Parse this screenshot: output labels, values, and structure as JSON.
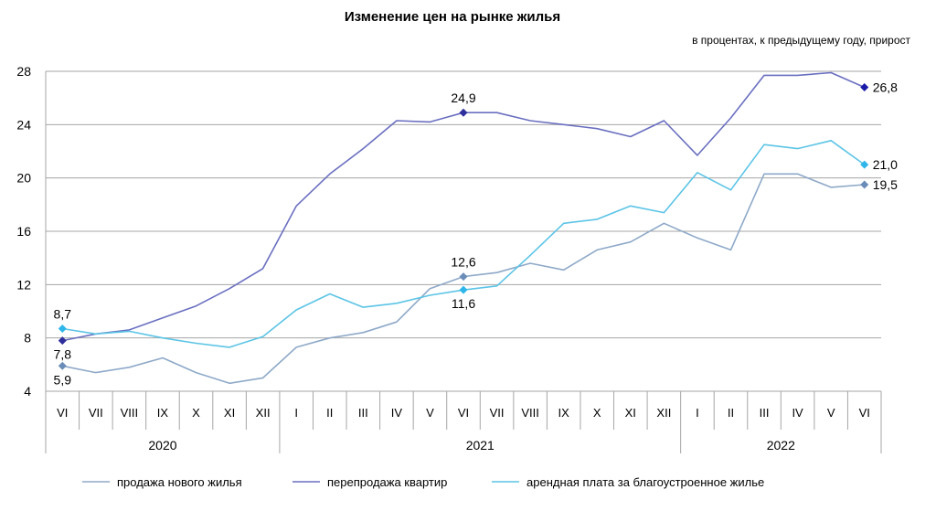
{
  "chart_data": {
    "type": "line",
    "title": "Изменение цен на рынке жилья",
    "subtitle": "в процентах, к предыдущему году, прирост",
    "ylim": [
      4,
      28
    ],
    "yticks": [
      "4",
      "8",
      "12",
      "16",
      "20",
      "24",
      "28"
    ],
    "grid": true,
    "legend_position": "bottom",
    "categories": [
      "VI",
      "VII",
      "VIII",
      "IX",
      "X",
      "XI",
      "XII",
      "I",
      "II",
      "III",
      "IV",
      "V",
      "VI",
      "VII",
      "VIII",
      "IX",
      "X",
      "XI",
      "XII",
      "I",
      "II",
      "III",
      "IV",
      "V",
      "VI"
    ],
    "years": [
      {
        "label": "2020",
        "start": 0,
        "end": 6
      },
      {
        "label": "2021",
        "start": 7,
        "end": 18
      },
      {
        "label": "2022",
        "start": 19,
        "end": 24
      }
    ],
    "series": [
      {
        "name": "продажа нового жилья",
        "color": "#8EA9C8",
        "values": [
          5.9,
          5.4,
          5.8,
          6.5,
          5.4,
          4.6,
          5.0,
          7.3,
          8.0,
          8.4,
          9.2,
          11.7,
          12.6,
          12.9,
          13.6,
          13.1,
          14.6,
          15.2,
          16.6,
          15.5,
          14.6,
          20.3,
          20.3,
          19.3,
          19.5
        ]
      },
      {
        "name": "перепродажа квартир",
        "color": "#6A6FC0",
        "values": [
          7.8,
          8.3,
          8.6,
          9.5,
          10.4,
          11.7,
          13.2,
          17.9,
          20.3,
          22.2,
          24.3,
          24.2,
          24.9,
          24.9,
          24.3,
          24.0,
          23.7,
          23.1,
          24.3,
          21.7,
          24.5,
          27.7,
          27.7,
          27.9,
          26.8
        ]
      },
      {
        "name": "арендная плата за благоустроенное  жилье",
        "color": "#5BC4E6",
        "values": [
          8.7,
          8.3,
          8.5,
          8.0,
          7.6,
          7.3,
          8.1,
          10.1,
          11.3,
          10.3,
          10.6,
          11.2,
          11.6,
          11.9,
          14.2,
          16.6,
          16.9,
          17.9,
          17.4,
          20.4,
          19.1,
          22.5,
          22.2,
          22.8,
          21.0
        ]
      }
    ],
    "data_labels": [
      {
        "series": 1,
        "index": 0,
        "text": "7,8",
        "marker_color": "#2E2E9C",
        "side": "below"
      },
      {
        "series": 2,
        "index": 0,
        "text": "8,7",
        "marker_color": "#2EB6EA",
        "side": "above"
      },
      {
        "series": 0,
        "index": 0,
        "text": "5,9",
        "marker_color": "#6A8CB8",
        "side": "below"
      },
      {
        "series": 1,
        "index": 12,
        "text": "24,9",
        "marker_color": "#2E2E9C",
        "side": "above"
      },
      {
        "series": 0,
        "index": 12,
        "text": "12,6",
        "marker_color": "#6A8CB8",
        "side": "above"
      },
      {
        "series": 2,
        "index": 12,
        "text": "11,6",
        "marker_color": "#2EB6EA",
        "side": "below"
      },
      {
        "series": 1,
        "index": 24,
        "text": "26,8",
        "marker_color": "#1A1AA8",
        "side": "right"
      },
      {
        "series": 2,
        "index": 24,
        "text": "21,0",
        "marker_color": "#2EB6EA",
        "side": "right"
      },
      {
        "series": 0,
        "index": 24,
        "text": "19,5",
        "marker_color": "#6A8CB8",
        "side": "right"
      }
    ]
  }
}
